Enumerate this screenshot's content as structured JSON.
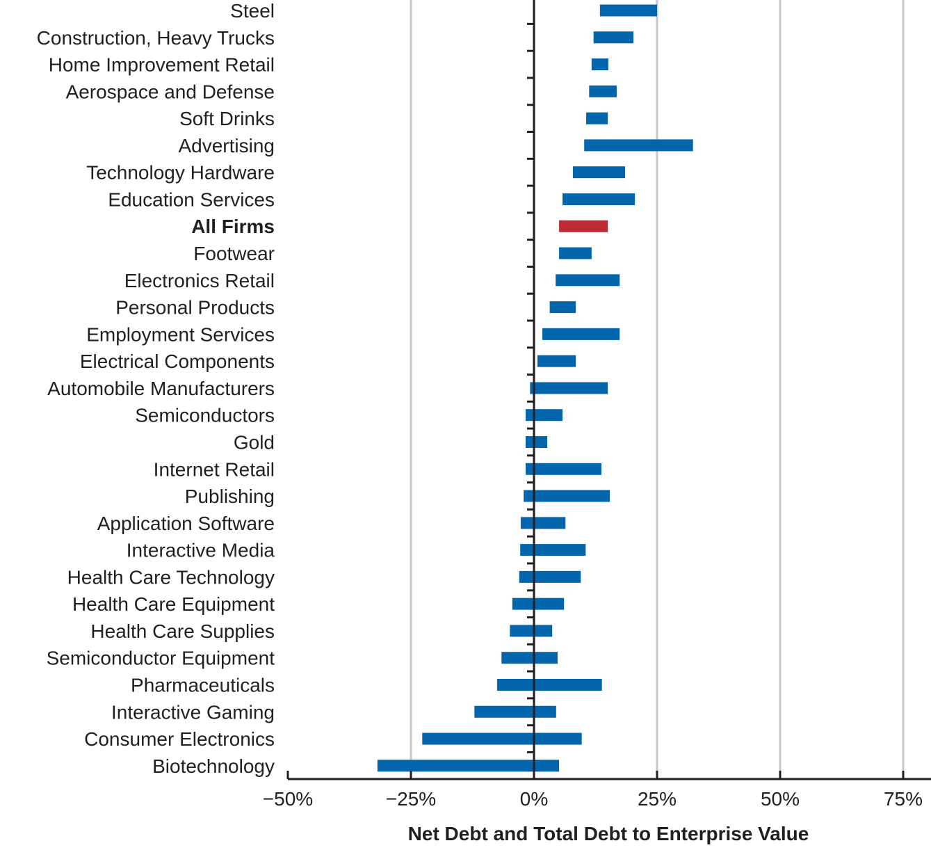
{
  "chart_data": {
    "type": "bar",
    "orientation": "horizontal",
    "subtype": "range",
    "title": "",
    "xlabel": "Net Debt and Total Debt to Enterprise Value",
    "ylabel": "",
    "xlim": [
      -50,
      80
    ],
    "xticks": [
      -50,
      -25,
      0,
      25,
      50,
      75
    ],
    "xtick_labels": [
      "−50%",
      "−25%",
      "0%",
      "25%",
      "50%",
      "75%"
    ],
    "grid": true,
    "legend": "none",
    "colors": {
      "default": "#0366ac",
      "highlight": "#be2a33",
      "grid": "#c8c8c8",
      "axis": "#231f20"
    },
    "series_note": "Each bar spans from Net Debt/EV (left end) to Total Debt/EV (right end), in percent",
    "categories": [
      "Steel",
      "Construction, Heavy Trucks",
      "Home Improvement Retail",
      "Aerospace and Defense",
      "Soft Drinks",
      "Advertising",
      "Technology Hardware",
      "Education Services",
      "All Firms",
      "Footwear",
      "Electronics Retail",
      "Personal Products",
      "Employment Services",
      "Electrical Components",
      "Automobile Manufacturers",
      "Semiconductors",
      "Gold",
      "Internet Retail",
      "Publishing",
      "Application Software",
      "Interactive Media",
      "Health Care Technology",
      "Health Care Equipment",
      "Health Care Supplies",
      "Semiconductor Equipment",
      "Pharmaceuticals",
      "Interactive Gaming",
      "Consumer Electronics",
      "Biotechnology"
    ],
    "highlight": [
      "All Firms"
    ],
    "series": [
      {
        "name": "Net Debt to Enterprise Value",
        "values": [
          13.4,
          12.1,
          11.7,
          11.2,
          10.6,
          10.2,
          7.9,
          5.8,
          5.1,
          5.1,
          4.4,
          3.2,
          1.7,
          0.7,
          -0.8,
          -1.7,
          -1.7,
          -1.7,
          -2.1,
          -2.7,
          -2.8,
          -3.0,
          -4.4,
          -4.9,
          -6.6,
          -7.5,
          -12.1,
          -22.7,
          -31.8
        ]
      },
      {
        "name": "Total Debt to Enterprise Value",
        "values": [
          25.0,
          20.2,
          15.1,
          16.8,
          15.0,
          32.3,
          18.5,
          20.5,
          15.0,
          11.7,
          17.4,
          8.5,
          17.4,
          8.5,
          15.0,
          5.8,
          2.7,
          13.7,
          15.4,
          6.4,
          10.5,
          9.5,
          6.1,
          3.7,
          4.8,
          13.8,
          4.5,
          9.7,
          5.1
        ]
      }
    ]
  }
}
